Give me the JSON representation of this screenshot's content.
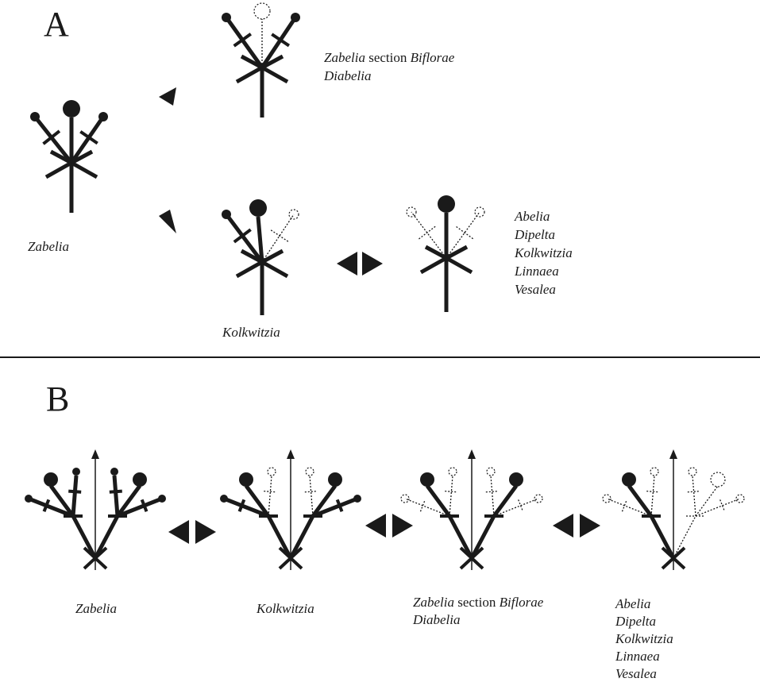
{
  "panel_a": {
    "label": "A",
    "upper_taxa": {
      "line1": [
        "Zabelia",
        "section",
        "Biflorae"
      ],
      "line2": "Diabelia"
    },
    "ancestral_taxon": "Zabelia",
    "middle_taxon": "Kolkwitzia",
    "right_taxa": [
      "Abelia",
      "Dipelta",
      "Kolkwitzia",
      "Linnaea",
      "Vesalea"
    ]
  },
  "panel_b": {
    "label": "B",
    "stage_1": "Zabelia",
    "stage_2": "Kolkwitzia",
    "stage_3": {
      "line1": [
        "Zabelia",
        "section",
        "Biflorae"
      ],
      "line2": "Diabelia"
    },
    "stage_4": [
      "Abelia",
      "Dipelta",
      "Kolkwitzia",
      "Linnaea",
      "Vesalea"
    ]
  }
}
